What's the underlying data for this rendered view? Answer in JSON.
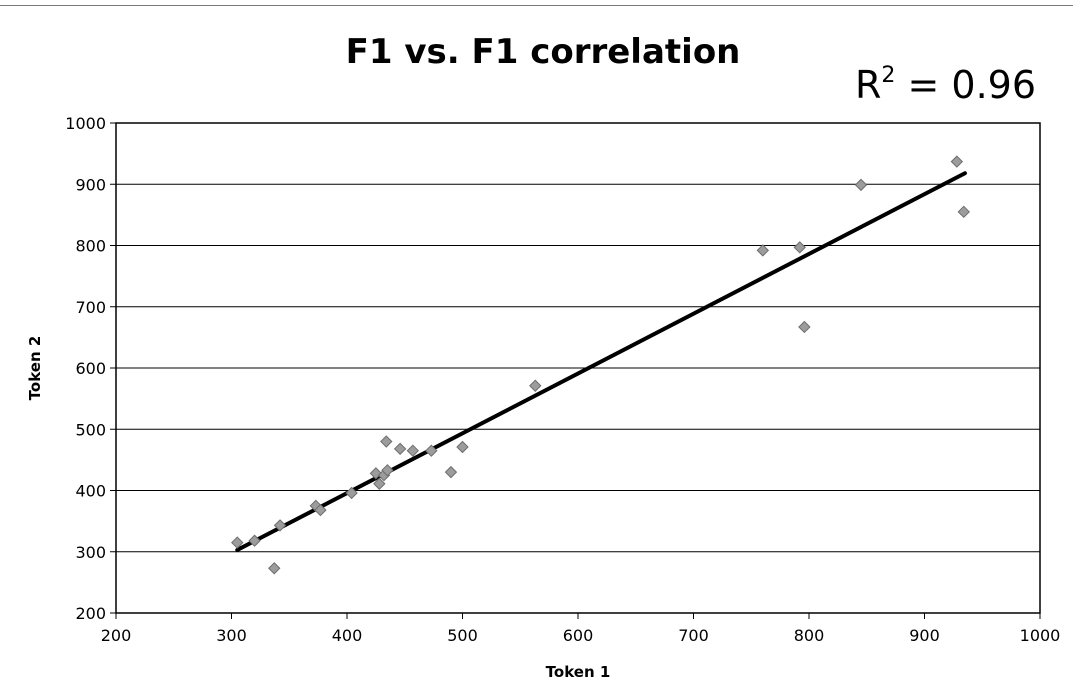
{
  "chart_data": {
    "type": "scatter",
    "title": "F1 vs. F1 correlation",
    "annotation": {
      "base": "R",
      "sup": "2",
      "rest": " = 0.96"
    },
    "xlabel": "Token 1",
    "ylabel": "Token 2",
    "xlim": [
      200,
      1000
    ],
    "ylim": [
      200,
      1000
    ],
    "xticks": [
      "200",
      "300",
      "400",
      "500",
      "600",
      "700",
      "800",
      "900",
      "1000"
    ],
    "yticks": [
      "200",
      "300",
      "400",
      "500",
      "600",
      "700",
      "800",
      "900",
      "1000"
    ],
    "grid": "horizontal major gridlines",
    "legend": "none",
    "point_color": "#9c9c9c",
    "trendline": {
      "x": [
        305,
        935
      ],
      "y": [
        303,
        918
      ]
    },
    "points": [
      {
        "x": 305,
        "y": 315
      },
      {
        "x": 320,
        "y": 318
      },
      {
        "x": 337,
        "y": 273
      },
      {
        "x": 342,
        "y": 343
      },
      {
        "x": 373,
        "y": 375
      },
      {
        "x": 377,
        "y": 368
      },
      {
        "x": 404,
        "y": 396
      },
      {
        "x": 425,
        "y": 428
      },
      {
        "x": 428,
        "y": 411
      },
      {
        "x": 432,
        "y": 425
      },
      {
        "x": 435,
        "y": 433
      },
      {
        "x": 434,
        "y": 480
      },
      {
        "x": 446,
        "y": 468
      },
      {
        "x": 457,
        "y": 465
      },
      {
        "x": 473,
        "y": 465
      },
      {
        "x": 490,
        "y": 430
      },
      {
        "x": 500,
        "y": 471
      },
      {
        "x": 563,
        "y": 571
      },
      {
        "x": 760,
        "y": 792
      },
      {
        "x": 792,
        "y": 797
      },
      {
        "x": 796,
        "y": 667
      },
      {
        "x": 845,
        "y": 899
      },
      {
        "x": 928,
        "y": 937
      },
      {
        "x": 934,
        "y": 855
      }
    ]
  }
}
